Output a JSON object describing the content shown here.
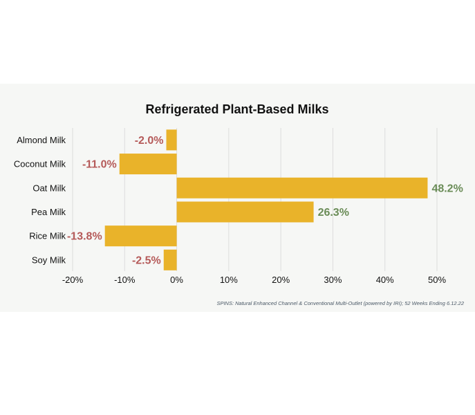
{
  "chart_data": {
    "type": "bar",
    "orientation": "horizontal",
    "title": "Refrigerated Plant-Based Milks",
    "categories": [
      "Almond Milk",
      "Coconut Milk",
      "Oat Milk",
      "Pea Milk",
      "Rice Milk",
      "Soy Milk"
    ],
    "values": [
      -2.0,
      -11.0,
      48.2,
      26.3,
      -13.8,
      -2.5
    ],
    "data_labels": [
      "-2.0%",
      "-11.0%",
      "48.2%",
      "26.3%",
      "-13.8%",
      "-2.5%"
    ],
    "xlim": [
      -20,
      50
    ],
    "x_ticks": [
      -20,
      -10,
      0,
      10,
      20,
      30,
      40,
      50
    ],
    "x_tick_labels": [
      "-20%",
      "-10%",
      "0%",
      "10%",
      "20%",
      "30%",
      "40%",
      "50%"
    ],
    "grid": true,
    "xlabel": "",
    "ylabel": "",
    "bar_color": "#e9b32a",
    "positive_label_color": "#6a8c57",
    "negative_label_color": "#b55a59",
    "source": "SPINS: Natural Enhanced Channel & Conventional Multi-Outlet (powered by IRI); 52 Weeks Ending 6.12.22"
  }
}
